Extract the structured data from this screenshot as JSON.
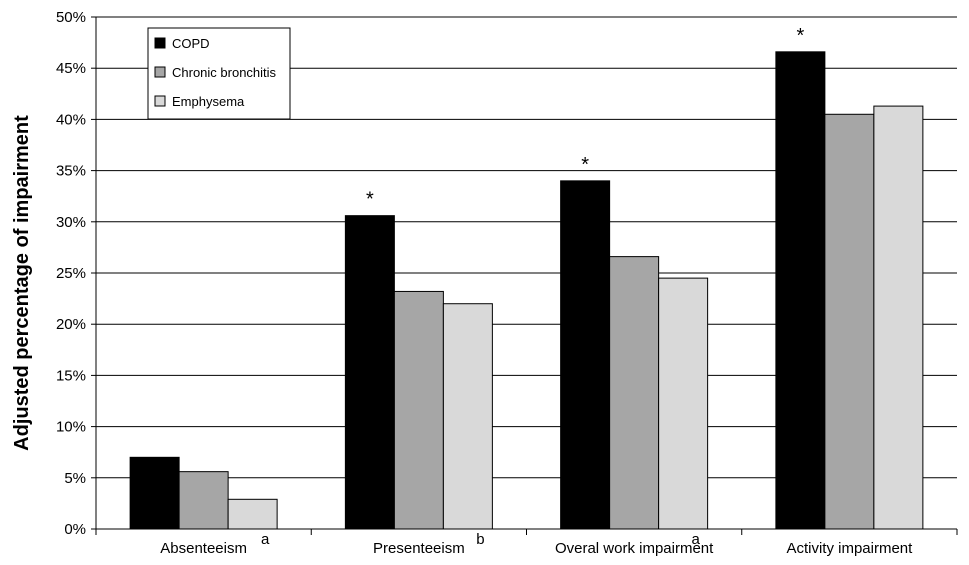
{
  "chart_data": {
    "type": "bar",
    "title": "",
    "xlabel": "",
    "ylabel": "Adjusted percentage of impairment",
    "ylim": [
      0,
      50
    ],
    "y_ticks": [
      "0%",
      "5%",
      "10%",
      "15%",
      "20%",
      "25%",
      "30%",
      "35%",
      "40%",
      "45%",
      "50%"
    ],
    "grid": true,
    "legend_position": "top-left",
    "categories": [
      "Absenteeism",
      "Presenteeism",
      "Overal work impairment",
      "Activity impairment"
    ],
    "category_notes": [
      "a",
      "b",
      "a",
      ""
    ],
    "significance_markers": [
      "",
      "*",
      "*",
      "*"
    ],
    "series": [
      {
        "name": "COPD",
        "color": "#000000",
        "values": [
          7.0,
          30.6,
          34.0,
          46.6
        ]
      },
      {
        "name": "Chronic bronchitis",
        "color": "#a6a6a6",
        "values": [
          5.6,
          23.2,
          26.6,
          40.5
        ]
      },
      {
        "name": "Emphysema",
        "color": "#d9d9d9",
        "values": [
          2.9,
          22.0,
          24.5,
          41.3
        ]
      }
    ]
  }
}
